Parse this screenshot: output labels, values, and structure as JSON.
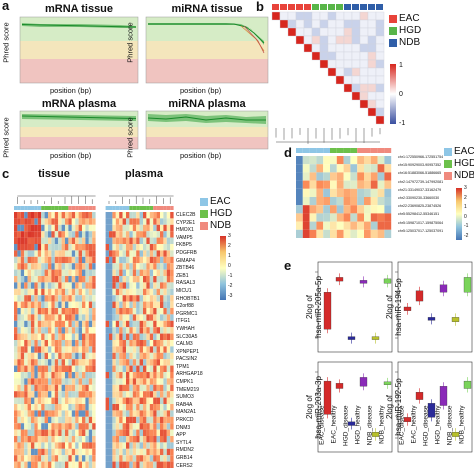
{
  "panel_a": {
    "label": "a",
    "plots": [
      {
        "title": "mRNA tissue",
        "ylabel": "Phred score",
        "xlabel": "position (bp)"
      },
      {
        "title": "miRNA tissue",
        "ylabel": "Phred score",
        "xlabel": "position (bp)"
      },
      {
        "title": "mRNA plasma",
        "ylabel": "Phred score",
        "xlabel": "position (bp)"
      },
      {
        "title": "miRNA plasma",
        "ylabel": "Phred score",
        "xlabel": "position (bp)"
      }
    ]
  },
  "panel_b": {
    "label": "b",
    "legend": [
      {
        "name": "EAC",
        "color": "#e8433a"
      },
      {
        "name": "HGD",
        "color": "#58b548"
      },
      {
        "name": "NDB",
        "color": "#2f5ea8"
      }
    ],
    "scale": [
      "1",
      "0",
      "-1"
    ]
  },
  "panel_c": {
    "label": "c",
    "groups": [
      "tissue",
      "plasma"
    ],
    "legend": [
      "EAC",
      "HGD",
      "NDB"
    ],
    "scale": [
      "3",
      "2",
      "1",
      "0",
      "-1",
      "-2",
      "-3"
    ],
    "genes": [
      "CLEC2B",
      "CYP2E1",
      "HMOX1",
      "VAMP5",
      "FKBP5",
      "PDGFRB",
      "GIMAP4",
      "ZBTB46",
      "ZEB1",
      "RASAL3",
      "MICU1",
      "RHOBTB1",
      "C2orf88",
      "PGRMC1",
      "ITFG1",
      "YWHAH",
      "SLC30A5",
      "CALM3",
      "XPNPEP1",
      "PACSIN2",
      "TPM1",
      "ARHGAP18",
      "CMPK1",
      "TMEM219",
      "SUMO3",
      "RAB4A",
      "MAN2A1",
      "PRKCD",
      "DNM3",
      "APP",
      "SYTL4",
      "RMDN2",
      "GRB14",
      "CERS2"
    ]
  },
  "panel_d": {
    "label": "d",
    "legend": [
      "EAC",
      "HGD",
      "NDB"
    ],
    "scale": [
      "3",
      "2",
      "1",
      "0",
      "-1",
      "-2"
    ],
    "rows": [
      "chr1:172550966-172551754",
      "chr15:90929003-90957352",
      "chr16:51883066-51886665",
      "chr2:147972739-147992081",
      "chr21:33149037-33162479",
      "chr2:33090230-33660030",
      "chr22:23690825-23874526",
      "chr5:55298412-55346151",
      "chr5:159871017-159875064",
      "chr5:125037017-125037091"
    ]
  },
  "panel_e": {
    "label": "e",
    "ylabel_prefix": "2log of",
    "y_titles": [
      "hsa-miR-205a-5p",
      "hsa-miR-194-5p",
      "hsa-miR-203a-3p",
      "hsa-miR-192-5p"
    ],
    "x_categories": [
      "EAC_disease",
      "EAC_healthy",
      "HGD_disease",
      "HGD_healthy",
      "NDB_disease",
      "NDB_healthy"
    ]
  }
}
